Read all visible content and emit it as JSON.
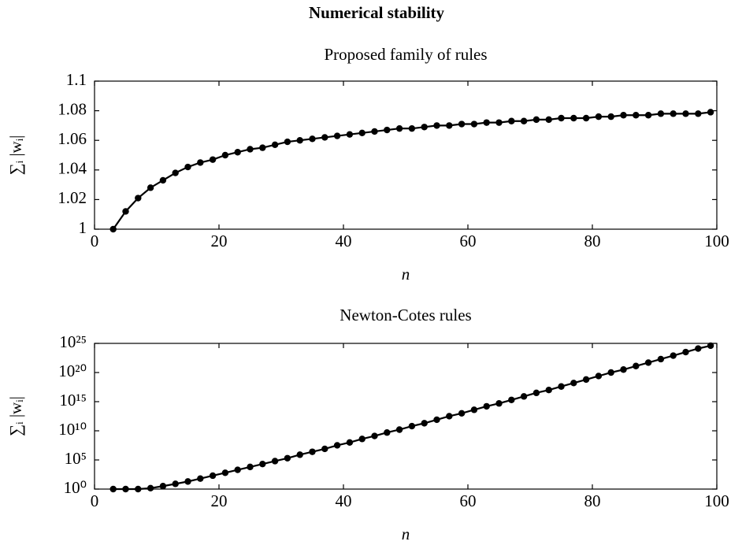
{
  "title": "Numerical stability",
  "chart_data": [
    {
      "type": "line",
      "title": "Proposed family of rules",
      "xlabel": "n",
      "ylabel": "∑ᵢ |wᵢ|",
      "x": [
        3,
        5,
        7,
        9,
        11,
        13,
        15,
        17,
        19,
        21,
        23,
        25,
        27,
        29,
        31,
        33,
        35,
        37,
        39,
        41,
        43,
        45,
        47,
        49,
        51,
        53,
        55,
        57,
        59,
        61,
        63,
        65,
        67,
        69,
        71,
        73,
        75,
        77,
        79,
        81,
        83,
        85,
        87,
        89,
        91,
        93,
        95,
        97,
        99
      ],
      "series": [
        {
          "color": "#000000",
          "values": [
            1.0,
            1.012,
            1.021,
            1.028,
            1.033,
            1.038,
            1.042,
            1.045,
            1.047,
            1.05,
            1.052,
            1.054,
            1.055,
            1.057,
            1.059,
            1.06,
            1.061,
            1.062,
            1.063,
            1.064,
            1.065,
            1.066,
            1.067,
            1.068,
            1.068,
            1.069,
            1.07,
            1.07,
            1.071,
            1.071,
            1.072,
            1.072,
            1.073,
            1.073,
            1.074,
            1.074,
            1.075,
            1.075,
            1.075,
            1.076,
            1.076,
            1.077,
            1.077,
            1.077,
            1.078,
            1.078,
            1.078,
            1.078,
            1.079
          ]
        }
      ],
      "xlim": [
        0,
        100
      ],
      "xticks": [
        0,
        20,
        40,
        60,
        80,
        100
      ],
      "ylim": [
        1,
        1.1
      ],
      "yticks": [
        1,
        1.02,
        1.04,
        1.06,
        1.08,
        1.1
      ],
      "log": false
    },
    {
      "type": "line",
      "title": "Newton-Cotes rules",
      "xlabel": "n",
      "ylabel": "∑ᵢ |wᵢ|",
      "x": [
        3,
        5,
        7,
        9,
        11,
        13,
        15,
        17,
        19,
        21,
        23,
        25,
        27,
        29,
        31,
        33,
        35,
        37,
        39,
        41,
        43,
        45,
        47,
        49,
        51,
        53,
        55,
        57,
        59,
        61,
        63,
        65,
        67,
        69,
        71,
        73,
        75,
        77,
        79,
        81,
        83,
        85,
        87,
        89,
        91,
        93,
        95,
        97,
        99
      ],
      "series": [
        {
          "color": "#000000",
          "values": [
            1,
            1,
            1,
            1.45,
            3.2,
            7.9,
            20.0,
            63.0,
            200.0,
            630.0,
            2000.0,
            6300.0,
            20000.0,
            63000.0,
            200000.0,
            790000.0,
            2500000.0,
            7900000.0,
            32000000.0,
            100000000.0,
            400000000.0,
            1300000000.0,
            5000000000.0,
            16000000000.0,
            63000000000.0,
            200000000000.0,
            790000000000.0,
            3200000000000.0,
            10000000000000.0,
            40000000000000.0,
            160000000000000.0,
            500000000000000.0,
            2000000000000000.0,
            7900000000000000.0,
            3.2e+16,
            1e+17,
            4e+17,
            1.6e+18,
            6.3e+18,
            2.5e+19,
            1e+20,
            3.2e+20,
            1.3e+21,
            5e+21,
            2e+22,
            7.9e+22,
            3.2e+23,
            1.3e+24,
            4e+24
          ]
        }
      ],
      "xlim": [
        0,
        100
      ],
      "xticks": [
        0,
        20,
        40,
        60,
        80,
        100
      ],
      "ylim": [
        1,
        1e+25
      ],
      "yticks": [
        {
          "value": 1,
          "label": "10⁰"
        },
        {
          "value": 100000.0,
          "label": "10⁵"
        },
        {
          "value": 10000000000.0,
          "label": "10¹⁰"
        },
        {
          "value": 1000000000000000.0,
          "label": "10¹⁵"
        },
        {
          "value": 1e+20,
          "label": "10²⁰"
        },
        {
          "value": 1e+25,
          "label": "10²⁵"
        }
      ],
      "log": true
    }
  ]
}
